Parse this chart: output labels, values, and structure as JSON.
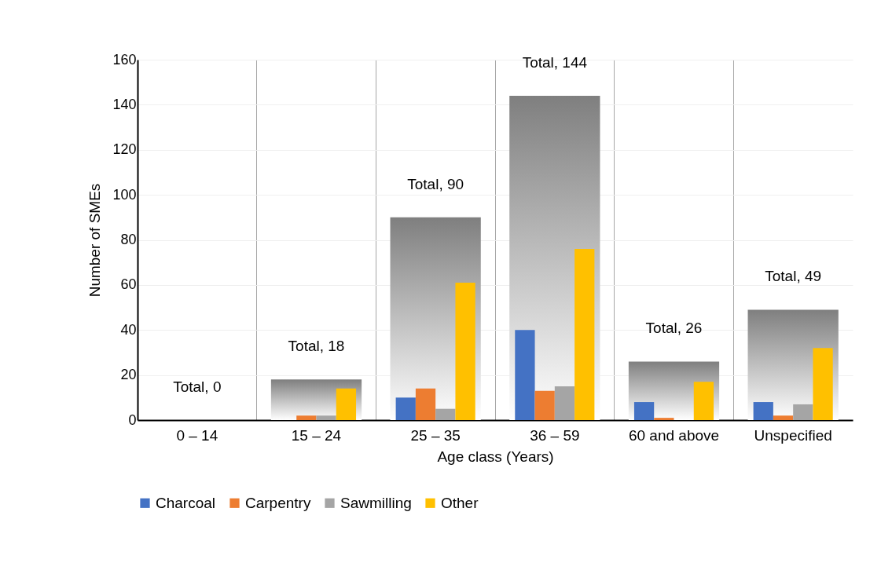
{
  "chart_data": {
    "type": "bar",
    "xlabel": "Age class (Years)",
    "ylabel": "Number of SMEs",
    "categories": [
      "0 – 14",
      "15 – 24",
      "25 – 35",
      "36 – 59",
      "60 and above",
      "Unspecified"
    ],
    "series": [
      {
        "color": "#7f7f7f",
        "values": [
          0,
          18,
          90,
          144,
          26,
          49
        ],
        "value_labels": [
          "Total, 0",
          "Total, 18",
          "Total, 90",
          "Total, 144",
          "Total, 26",
          "Total, 49"
        ]
      },
      {
        "name": "Charcoal",
        "color": "#4472c4",
        "values": [
          0,
          0,
          10,
          40,
          8,
          8
        ]
      },
      {
        "name": "Carpentry",
        "color": "#ed7d31",
        "values": [
          0,
          2,
          14,
          13,
          1,
          2
        ]
      },
      {
        "name": "Sawmilling",
        "color": "#a5a5a5",
        "values": [
          0,
          2,
          5,
          15,
          0,
          7
        ]
      },
      {
        "name": "Other",
        "color": "#ffc000",
        "values": [
          0,
          14,
          61,
          76,
          17,
          32
        ]
      }
    ],
    "ylim": [
      0,
      160
    ],
    "yticks": [
      0,
      20,
      40,
      60,
      80,
      100,
      120,
      140,
      160
    ],
    "grid": true,
    "legend": "bottom"
  }
}
